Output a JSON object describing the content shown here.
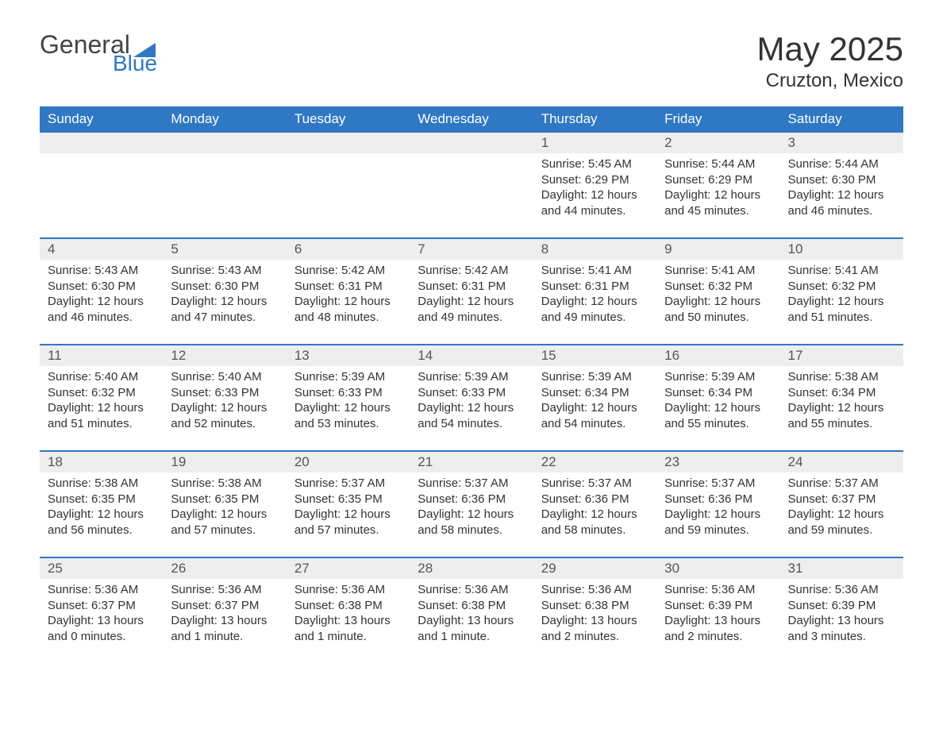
{
  "logo": {
    "word1": "General",
    "word2": "Blue",
    "tri_color": "#2f78c4"
  },
  "title": {
    "month": "May 2025",
    "location": "Cruzton, Mexico"
  },
  "colors": {
    "header_bg": "#2f78c4",
    "header_text": "#ffffff",
    "daynum_bg": "#eeeeee",
    "week_border": "#2f78c4",
    "body_text": "#333333",
    "page_bg": "#ffffff"
  },
  "typography": {
    "month_fontsize": 42,
    "location_fontsize": 24,
    "dow_fontsize": 17,
    "daynum_fontsize": 17,
    "info_fontsize": 15
  },
  "days_of_week": [
    "Sunday",
    "Monday",
    "Tuesday",
    "Wednesday",
    "Thursday",
    "Friday",
    "Saturday"
  ],
  "weeks": [
    [
      {
        "day": "",
        "sunrise": "",
        "sunset": "",
        "daylight": ""
      },
      {
        "day": "",
        "sunrise": "",
        "sunset": "",
        "daylight": ""
      },
      {
        "day": "",
        "sunrise": "",
        "sunset": "",
        "daylight": ""
      },
      {
        "day": "",
        "sunrise": "",
        "sunset": "",
        "daylight": ""
      },
      {
        "day": "1",
        "sunrise": "Sunrise: 5:45 AM",
        "sunset": "Sunset: 6:29 PM",
        "daylight": "Daylight: 12 hours and 44 minutes."
      },
      {
        "day": "2",
        "sunrise": "Sunrise: 5:44 AM",
        "sunset": "Sunset: 6:29 PM",
        "daylight": "Daylight: 12 hours and 45 minutes."
      },
      {
        "day": "3",
        "sunrise": "Sunrise: 5:44 AM",
        "sunset": "Sunset: 6:30 PM",
        "daylight": "Daylight: 12 hours and 46 minutes."
      }
    ],
    [
      {
        "day": "4",
        "sunrise": "Sunrise: 5:43 AM",
        "sunset": "Sunset: 6:30 PM",
        "daylight": "Daylight: 12 hours and 46 minutes."
      },
      {
        "day": "5",
        "sunrise": "Sunrise: 5:43 AM",
        "sunset": "Sunset: 6:30 PM",
        "daylight": "Daylight: 12 hours and 47 minutes."
      },
      {
        "day": "6",
        "sunrise": "Sunrise: 5:42 AM",
        "sunset": "Sunset: 6:31 PM",
        "daylight": "Daylight: 12 hours and 48 minutes."
      },
      {
        "day": "7",
        "sunrise": "Sunrise: 5:42 AM",
        "sunset": "Sunset: 6:31 PM",
        "daylight": "Daylight: 12 hours and 49 minutes."
      },
      {
        "day": "8",
        "sunrise": "Sunrise: 5:41 AM",
        "sunset": "Sunset: 6:31 PM",
        "daylight": "Daylight: 12 hours and 49 minutes."
      },
      {
        "day": "9",
        "sunrise": "Sunrise: 5:41 AM",
        "sunset": "Sunset: 6:32 PM",
        "daylight": "Daylight: 12 hours and 50 minutes."
      },
      {
        "day": "10",
        "sunrise": "Sunrise: 5:41 AM",
        "sunset": "Sunset: 6:32 PM",
        "daylight": "Daylight: 12 hours and 51 minutes."
      }
    ],
    [
      {
        "day": "11",
        "sunrise": "Sunrise: 5:40 AM",
        "sunset": "Sunset: 6:32 PM",
        "daylight": "Daylight: 12 hours and 51 minutes."
      },
      {
        "day": "12",
        "sunrise": "Sunrise: 5:40 AM",
        "sunset": "Sunset: 6:33 PM",
        "daylight": "Daylight: 12 hours and 52 minutes."
      },
      {
        "day": "13",
        "sunrise": "Sunrise: 5:39 AM",
        "sunset": "Sunset: 6:33 PM",
        "daylight": "Daylight: 12 hours and 53 minutes."
      },
      {
        "day": "14",
        "sunrise": "Sunrise: 5:39 AM",
        "sunset": "Sunset: 6:33 PM",
        "daylight": "Daylight: 12 hours and 54 minutes."
      },
      {
        "day": "15",
        "sunrise": "Sunrise: 5:39 AM",
        "sunset": "Sunset: 6:34 PM",
        "daylight": "Daylight: 12 hours and 54 minutes."
      },
      {
        "day": "16",
        "sunrise": "Sunrise: 5:39 AM",
        "sunset": "Sunset: 6:34 PM",
        "daylight": "Daylight: 12 hours and 55 minutes."
      },
      {
        "day": "17",
        "sunrise": "Sunrise: 5:38 AM",
        "sunset": "Sunset: 6:34 PM",
        "daylight": "Daylight: 12 hours and 55 minutes."
      }
    ],
    [
      {
        "day": "18",
        "sunrise": "Sunrise: 5:38 AM",
        "sunset": "Sunset: 6:35 PM",
        "daylight": "Daylight: 12 hours and 56 minutes."
      },
      {
        "day": "19",
        "sunrise": "Sunrise: 5:38 AM",
        "sunset": "Sunset: 6:35 PM",
        "daylight": "Daylight: 12 hours and 57 minutes."
      },
      {
        "day": "20",
        "sunrise": "Sunrise: 5:37 AM",
        "sunset": "Sunset: 6:35 PM",
        "daylight": "Daylight: 12 hours and 57 minutes."
      },
      {
        "day": "21",
        "sunrise": "Sunrise: 5:37 AM",
        "sunset": "Sunset: 6:36 PM",
        "daylight": "Daylight: 12 hours and 58 minutes."
      },
      {
        "day": "22",
        "sunrise": "Sunrise: 5:37 AM",
        "sunset": "Sunset: 6:36 PM",
        "daylight": "Daylight: 12 hours and 58 minutes."
      },
      {
        "day": "23",
        "sunrise": "Sunrise: 5:37 AM",
        "sunset": "Sunset: 6:36 PM",
        "daylight": "Daylight: 12 hours and 59 minutes."
      },
      {
        "day": "24",
        "sunrise": "Sunrise: 5:37 AM",
        "sunset": "Sunset: 6:37 PM",
        "daylight": "Daylight: 12 hours and 59 minutes."
      }
    ],
    [
      {
        "day": "25",
        "sunrise": "Sunrise: 5:36 AM",
        "sunset": "Sunset: 6:37 PM",
        "daylight": "Daylight: 13 hours and 0 minutes."
      },
      {
        "day": "26",
        "sunrise": "Sunrise: 5:36 AM",
        "sunset": "Sunset: 6:37 PM",
        "daylight": "Daylight: 13 hours and 1 minute."
      },
      {
        "day": "27",
        "sunrise": "Sunrise: 5:36 AM",
        "sunset": "Sunset: 6:38 PM",
        "daylight": "Daylight: 13 hours and 1 minute."
      },
      {
        "day": "28",
        "sunrise": "Sunrise: 5:36 AM",
        "sunset": "Sunset: 6:38 PM",
        "daylight": "Daylight: 13 hours and 1 minute."
      },
      {
        "day": "29",
        "sunrise": "Sunrise: 5:36 AM",
        "sunset": "Sunset: 6:38 PM",
        "daylight": "Daylight: 13 hours and 2 minutes."
      },
      {
        "day": "30",
        "sunrise": "Sunrise: 5:36 AM",
        "sunset": "Sunset: 6:39 PM",
        "daylight": "Daylight: 13 hours and 2 minutes."
      },
      {
        "day": "31",
        "sunrise": "Sunrise: 5:36 AM",
        "sunset": "Sunset: 6:39 PM",
        "daylight": "Daylight: 13 hours and 3 minutes."
      }
    ]
  ]
}
